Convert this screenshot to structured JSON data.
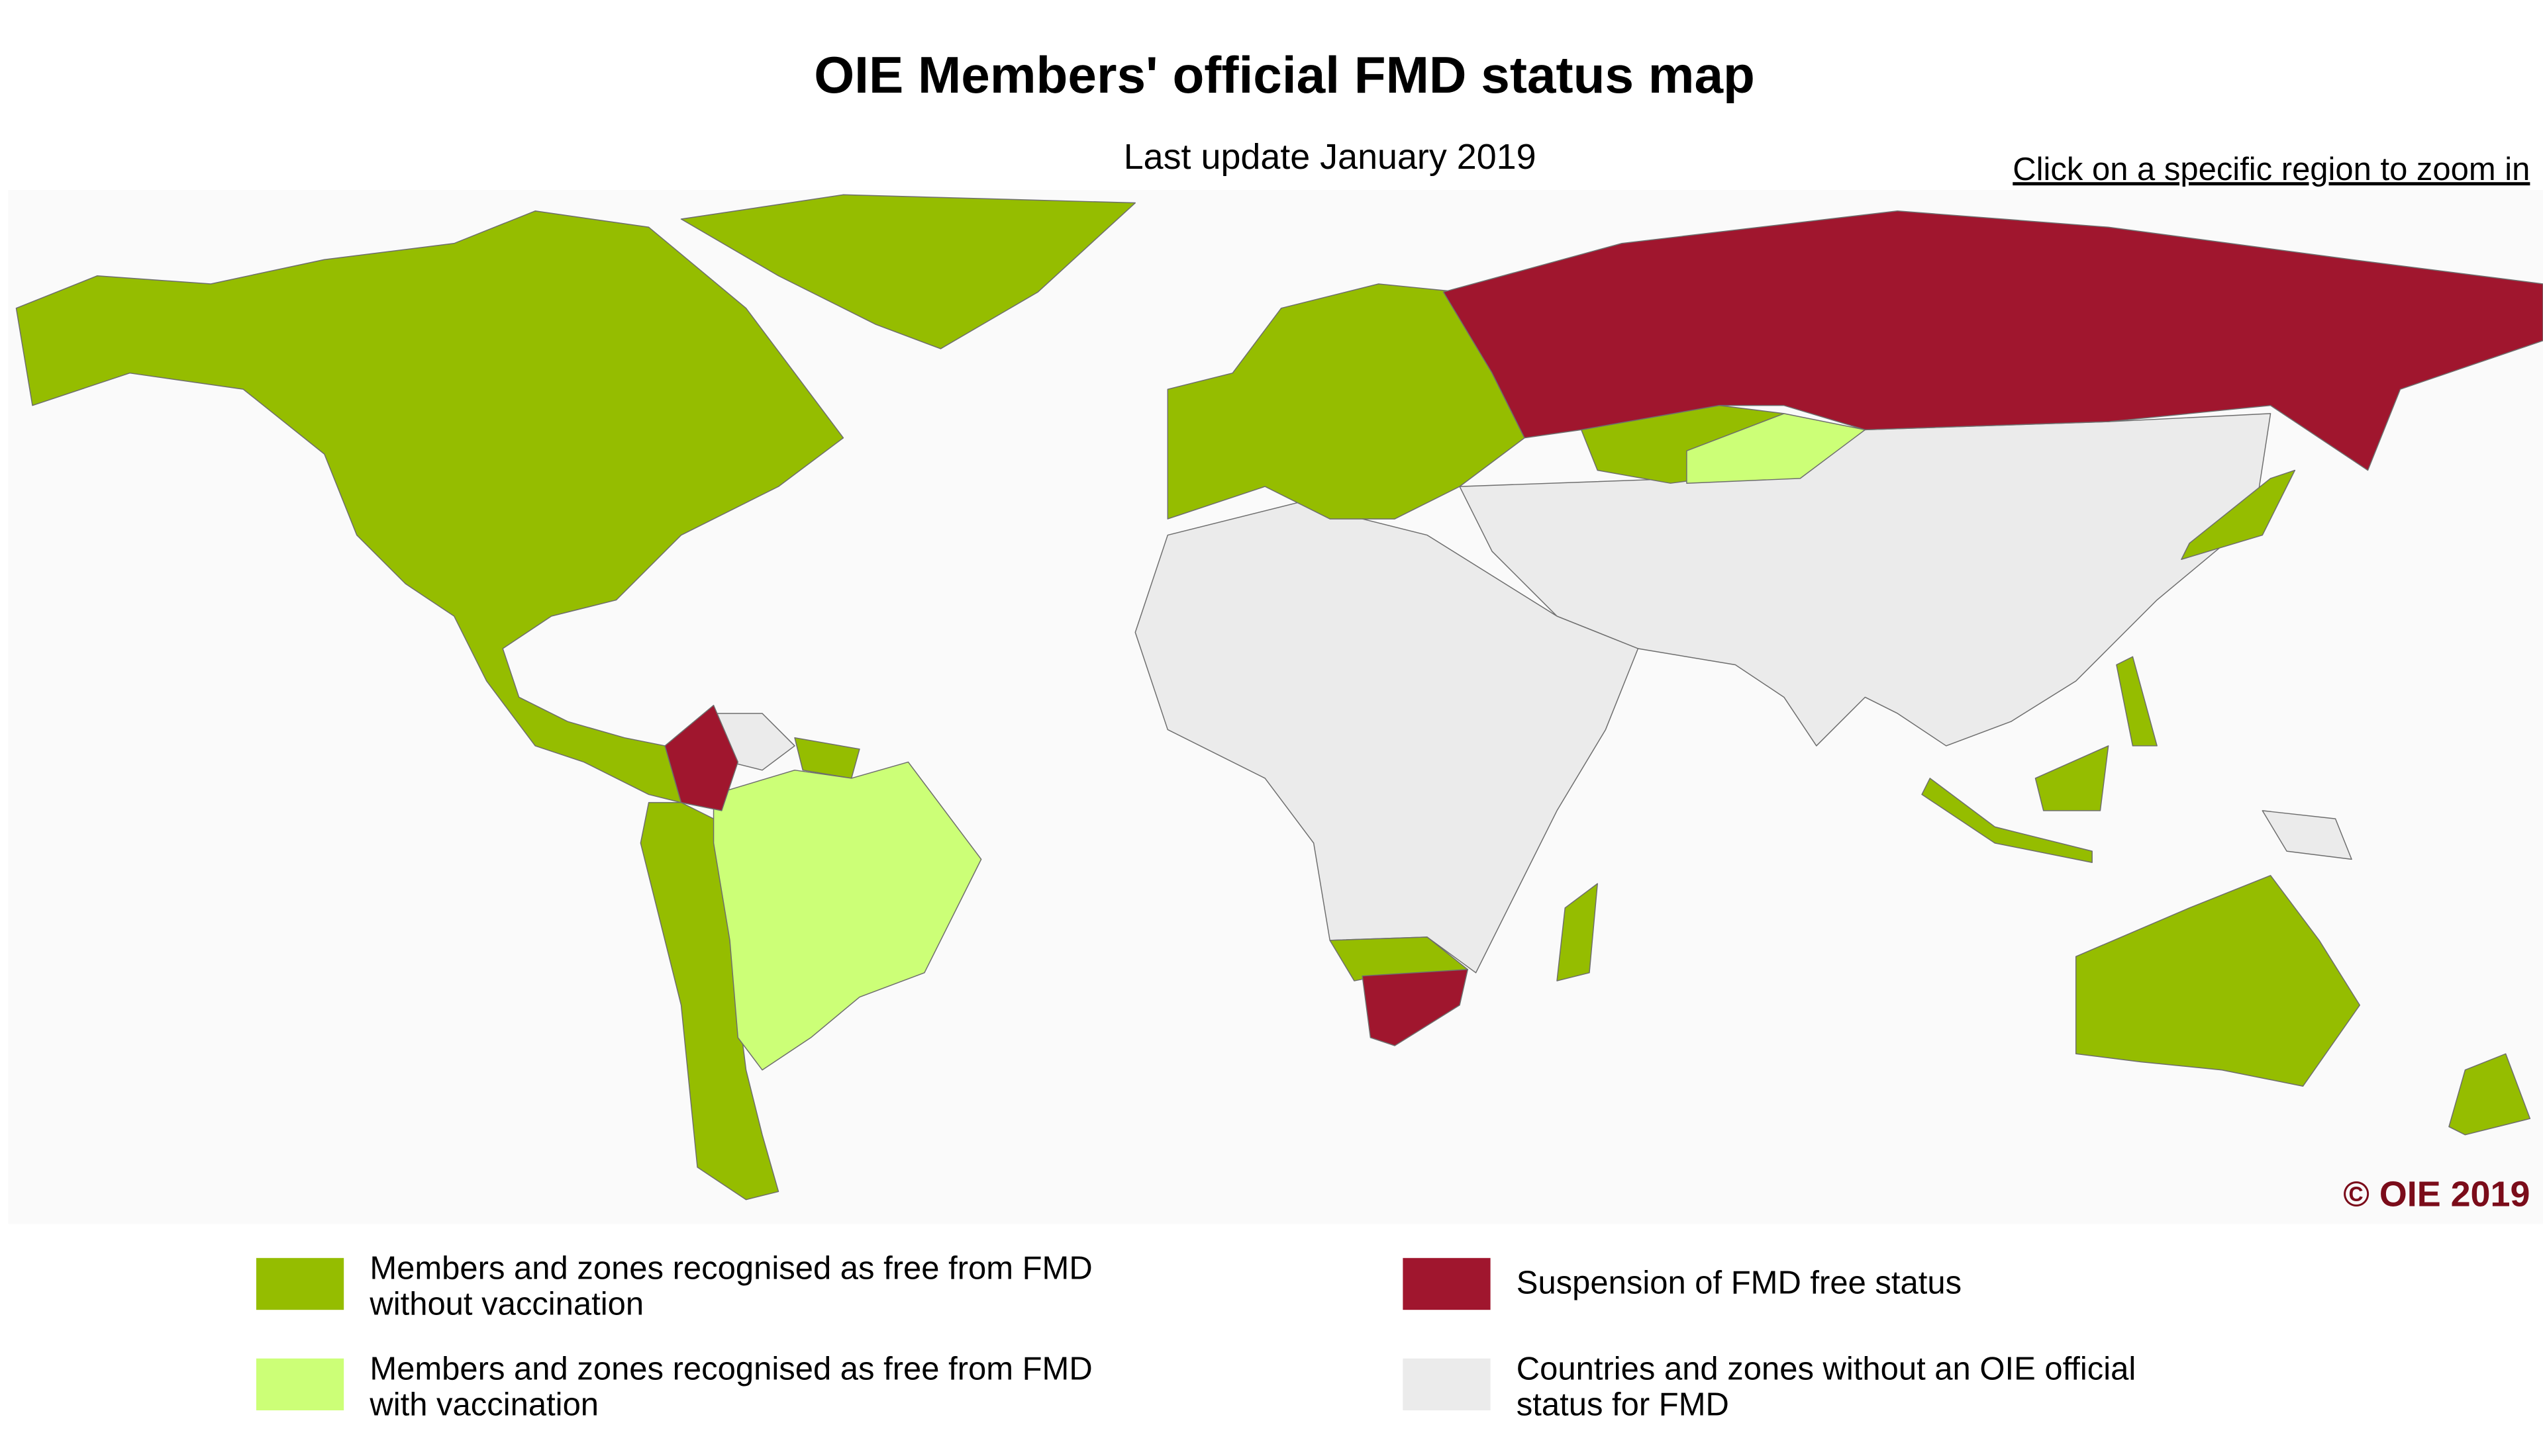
{
  "title": "OIE Members' official FMD status map",
  "subtitle": "Last update January 2019",
  "zoom_link": "Click on a specific region to zoom in",
  "copyright": "© OIE 2019",
  "legend": [
    {
      "lines": [
        "Members and zones recognised as free from FMD",
        "without vaccination"
      ],
      "color": "#95bd00"
    },
    {
      "lines": [
        "Members and zones recognised as free from FMD",
        "with vaccination"
      ],
      "color": "#ccff77"
    },
    {
      "lines": [
        "Suspension of FMD free status"
      ],
      "color": "#a0162e"
    },
    {
      "lines": [
        "Countries and zones without an OIE official",
        "status for FMD"
      ],
      "color": "#ebebeb"
    }
  ]
}
